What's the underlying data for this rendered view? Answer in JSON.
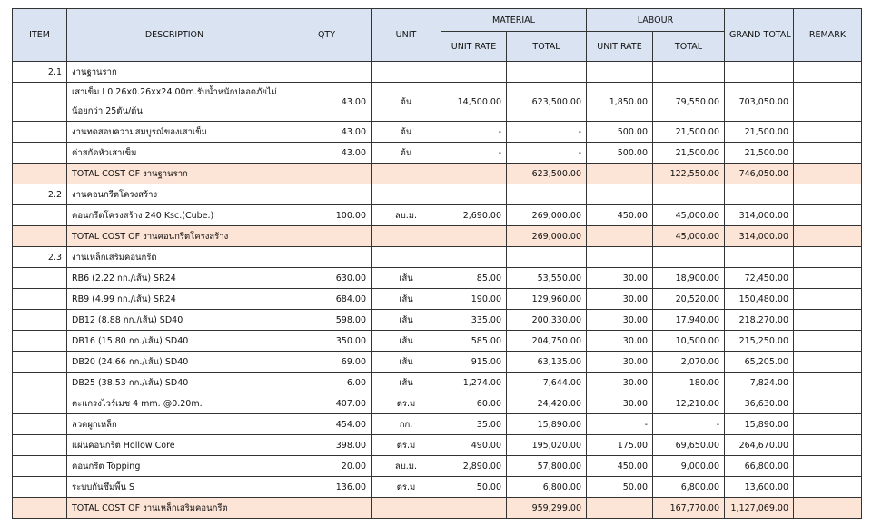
{
  "header": {
    "item": "ITEM",
    "description": "DESCRIPTION",
    "qty": "QTY",
    "unit": "UNIT",
    "material": "MATERIAL",
    "labour": "LABOUR",
    "unit_rate": "UNIT RATE",
    "total": "TOTAL",
    "grand_total": "GRAND TOTAL",
    "remark": "REMARK"
  },
  "rows": [
    {
      "type": "section",
      "item": "2.1",
      "desc": "งานฐานราก"
    },
    {
      "type": "line",
      "tall": true,
      "desc": "เสาเข็ม I 0.26x0.26xx24.00m.รับน้ำหนักปลอดภัยไม่น้อยกว่า 25ตัน/ต้น",
      "qty": "43.00",
      "unit": "ต้น",
      "mat_rate": "14,500.00",
      "mat_total": "623,500.00",
      "lab_rate": "1,850.00",
      "lab_total": "79,550.00",
      "grand": "703,050.00"
    },
    {
      "type": "line",
      "desc": "งานทดสอบความสมบูรณ์ของเสาเข็ม",
      "qty": "43.00",
      "unit": "ต้น",
      "mat_rate": "-",
      "mat_total": "-",
      "lab_rate": "500.00",
      "lab_total": "21,500.00",
      "grand": "21,500.00"
    },
    {
      "type": "line",
      "desc": "ค่าสกัดหัวเสาเข็ม",
      "qty": "43.00",
      "unit": "ต้น",
      "mat_rate": "-",
      "mat_total": "-",
      "lab_rate": "500.00",
      "lab_total": "21,500.00",
      "grand": "21,500.00"
    },
    {
      "type": "total",
      "desc": "TOTAL COST OF  งานฐานราก",
      "mat_total": "623,500.00",
      "lab_total": "122,550.00",
      "grand": "746,050.00"
    },
    {
      "type": "section",
      "item": "2.2",
      "desc": "งานคอนกรีตโครงสร้าง"
    },
    {
      "type": "line",
      "desc": "คอนกรีตโครงสร้าง 240 Ksc.(Cube.)",
      "qty": "100.00",
      "unit": "ลบ.ม.",
      "mat_rate": "2,690.00",
      "mat_total": "269,000.00",
      "lab_rate": "450.00",
      "lab_total": "45,000.00",
      "grand": "314,000.00"
    },
    {
      "type": "total",
      "desc": "TOTAL COST OF  งานคอนกรีตโครงสร้าง",
      "mat_total": "269,000.00",
      "lab_total": "45,000.00",
      "grand": "314,000.00"
    },
    {
      "type": "section",
      "item": "2.3",
      "desc": "งานเหล็กเสริมคอนกรีต"
    },
    {
      "type": "line",
      "desc": "RB6 (2.22 กก./เส้น) SR24",
      "qty": "630.00",
      "unit": "เส้น",
      "mat_rate": "85.00",
      "mat_total": "53,550.00",
      "lab_rate": "30.00",
      "lab_total": "18,900.00",
      "grand": "72,450.00"
    },
    {
      "type": "line",
      "desc": "RB9 (4.99 กก./เส้น) SR24",
      "qty": "684.00",
      "unit": "เส้น",
      "mat_rate": "190.00",
      "mat_total": "129,960.00",
      "lab_rate": "30.00",
      "lab_total": "20,520.00",
      "grand": "150,480.00"
    },
    {
      "type": "line",
      "desc": "DB12 (8.88 กก./เส้น) SD40",
      "qty": "598.00",
      "unit": "เส้น",
      "mat_rate": "335.00",
      "mat_total": "200,330.00",
      "lab_rate": "30.00",
      "lab_total": "17,940.00",
      "grand": "218,270.00"
    },
    {
      "type": "line",
      "desc": "DB16 (15.80 กก./เส้น) SD40",
      "qty": "350.00",
      "unit": "เส้น",
      "mat_rate": "585.00",
      "mat_total": "204,750.00",
      "lab_rate": "30.00",
      "lab_total": "10,500.00",
      "grand": "215,250.00"
    },
    {
      "type": "line",
      "desc": "DB20 (24.66 กก./เส้น) SD40",
      "qty": "69.00",
      "unit": "เส้น",
      "mat_rate": "915.00",
      "mat_total": "63,135.00",
      "lab_rate": "30.00",
      "lab_total": "2,070.00",
      "grand": "65,205.00"
    },
    {
      "type": "line",
      "desc": "DB25 (38.53 กก./เส้น) SD40",
      "qty": "6.00",
      "unit": "เส้น",
      "mat_rate": "1,274.00",
      "mat_total": "7,644.00",
      "lab_rate": "30.00",
      "lab_total": "180.00",
      "grand": "7,824.00"
    },
    {
      "type": "line",
      "desc": "ตะแกรงไวร์เมช 4 mm. @0.20m.",
      "qty": "407.00",
      "unit": "ตร.ม",
      "mat_rate": "60.00",
      "mat_total": "24,420.00",
      "lab_rate": "30.00",
      "lab_total": "12,210.00",
      "grand": "36,630.00"
    },
    {
      "type": "line",
      "desc": "ลวดผูกเหล็ก",
      "qty": "454.00",
      "unit": "กก.",
      "mat_rate": "35.00",
      "mat_total": "15,890.00",
      "lab_rate": "-",
      "lab_total": "-",
      "grand": "15,890.00"
    },
    {
      "type": "line",
      "desc": "แผ่นคอนกรีต Hollow Core",
      "qty": "398.00",
      "unit": "ตร.ม",
      "mat_rate": "490.00",
      "mat_total": "195,020.00",
      "lab_rate": "175.00",
      "lab_total": "69,650.00",
      "grand": "264,670.00"
    },
    {
      "type": "line",
      "desc": "คอนกรีต Topping",
      "qty": "20.00",
      "unit": "ลบ.ม.",
      "mat_rate": "2,890.00",
      "mat_total": "57,800.00",
      "lab_rate": "450.00",
      "lab_total": "9,000.00",
      "grand": "66,800.00"
    },
    {
      "type": "line",
      "desc": "ระบบกันซึมพื้น S",
      "qty": "136.00",
      "unit": "ตร.ม",
      "mat_rate": "50.00",
      "mat_total": "6,800.00",
      "lab_rate": "50.00",
      "lab_total": "6,800.00",
      "grand": "13,600.00"
    },
    {
      "type": "total",
      "desc": "TOTAL COST OF  งานเหล็กเสริมคอนกรีต",
      "mat_total": "959,299.00",
      "lab_total": "167,770.00",
      "grand": "1,127,069.00"
    }
  ]
}
